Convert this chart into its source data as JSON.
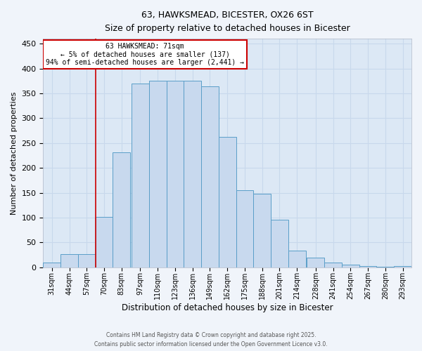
{
  "title1": "63, HAWKSMEAD, BICESTER, OX26 6ST",
  "title2": "Size of property relative to detached houses in Bicester",
  "xlabel": "Distribution of detached houses by size in Bicester",
  "ylabel": "Number of detached properties",
  "bar_labels": [
    "31sqm",
    "44sqm",
    "57sqm",
    "70sqm",
    "83sqm",
    "97sqm",
    "110sqm",
    "123sqm",
    "136sqm",
    "149sqm",
    "162sqm",
    "175sqm",
    "188sqm",
    "201sqm",
    "214sqm",
    "228sqm",
    "241sqm",
    "254sqm",
    "267sqm",
    "280sqm",
    "293sqm"
  ],
  "bin_starts": [
    31,
    44,
    57,
    70,
    83,
    97,
    110,
    123,
    136,
    149,
    162,
    175,
    188,
    201,
    214,
    228,
    241,
    254,
    267,
    280,
    293
  ],
  "heights": [
    10,
    26,
    26,
    101,
    232,
    370,
    375,
    376,
    376,
    364,
    263,
    155,
    148,
    96,
    33,
    20,
    10,
    5,
    3,
    1,
    3
  ],
  "bin_width": 13,
  "bar_color": "#c8d9ee",
  "bar_edge_color": "#5a9ec8",
  "grid_color": "#c8d8ec",
  "background_color": "#dce8f5",
  "fig_background": "#f0f4fa",
  "red_line_x": 70,
  "annotation_line1": "63 HAWKSMEAD: 71sqm",
  "annotation_line2": "← 5% of detached houses are smaller (137)",
  "annotation_line3": "94% of semi-detached houses are larger (2,441) →",
  "annotation_box_edgecolor": "#cc0000",
  "ylim": [
    0,
    460
  ],
  "yticks": [
    0,
    50,
    100,
    150,
    200,
    250,
    300,
    350,
    400,
    450
  ],
  "xlim_left": 31,
  "xlim_right": 306,
  "footer1": "Contains HM Land Registry data © Crown copyright and database right 2025.",
  "footer2": "Contains public sector information licensed under the Open Government Licence v3.0."
}
